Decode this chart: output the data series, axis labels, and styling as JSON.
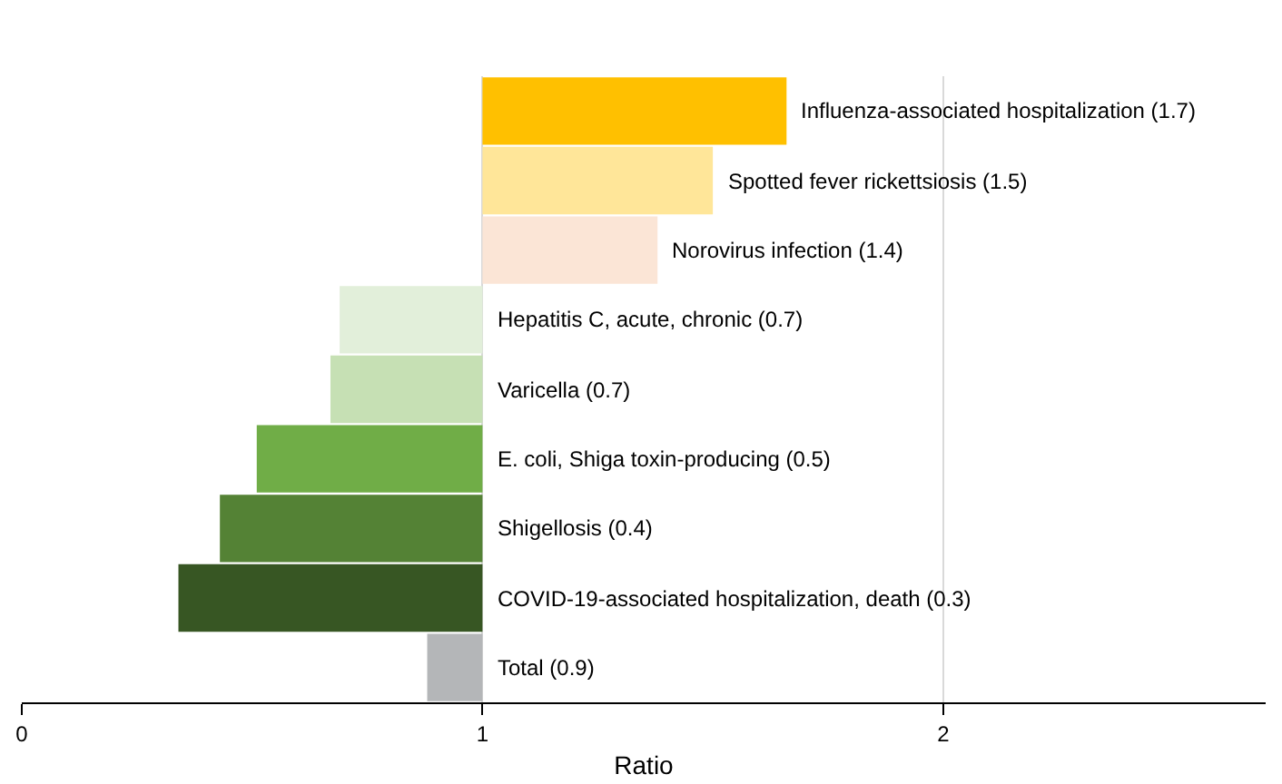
{
  "chart_data": {
    "type": "bar",
    "orientation": "horizontal",
    "xlabel": "Ratio",
    "categories": [
      "Influenza-associated hospitalization (1.7)",
      "Spotted fever rickettsiosis (1.5)",
      "Norovirus infection (1.4)",
      "Hepatitis C, acute, chronic (0.7)",
      "Varicella (0.7)",
      "E. coli, Shiga toxin-producing (0.5)",
      "Shigellosis (0.4)",
      "COVID-19-associated hospitalization, death (0.3)",
      "Total (0.9)"
    ],
    "base": [
      1,
      1,
      1,
      1,
      1,
      1,
      1,
      1,
      1
    ],
    "values": [
      0.66,
      0.5,
      0.38,
      -0.31,
      -0.33,
      -0.49,
      -0.57,
      -0.66,
      -0.12
    ],
    "colors": [
      "#ffc000",
      "#ffe699",
      "#fbe5d6",
      "#e2efda",
      "#c6e0b4",
      "#70ad47",
      "#548235",
      "#375623",
      "#b4b6b8"
    ],
    "xlim": [
      0,
      2.7
    ],
    "xticks": [
      0,
      1,
      2
    ],
    "grid": "x"
  }
}
